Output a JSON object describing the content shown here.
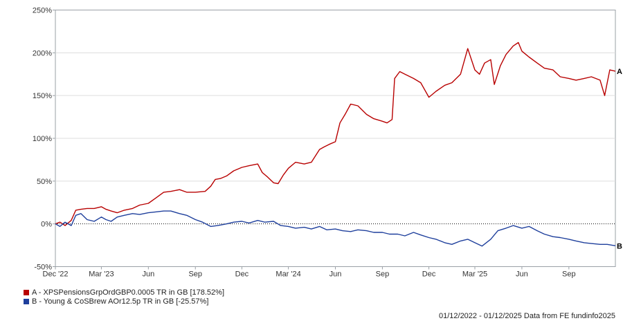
{
  "chart_data": {
    "type": "line",
    "y_axis": {
      "min": -50,
      "max": 250,
      "tick_values": [
        -50,
        0,
        50,
        100,
        150,
        200,
        250
      ],
      "tick_labels": [
        "-50%",
        "0%",
        "50%",
        "100%",
        "150%",
        "200%",
        "250%"
      ]
    },
    "x_axis": {
      "start": "2022-12-01",
      "end": "2025-12-01",
      "ticks": [
        {
          "date": "2022-12-01",
          "label": "Dec '22"
        },
        {
          "date": "2023-03-01",
          "label": "Mar '23"
        },
        {
          "date": "2023-06-01",
          "label": "Jun"
        },
        {
          "date": "2023-09-01",
          "label": "Sep"
        },
        {
          "date": "2023-12-01",
          "label": "Dec"
        },
        {
          "date": "2024-03-01",
          "label": "Mar '24"
        },
        {
          "date": "2024-06-01",
          "label": "Jun"
        },
        {
          "date": "2024-09-01",
          "label": "Sep"
        },
        {
          "date": "2024-12-01",
          "label": "Dec"
        },
        {
          "date": "2025-03-01",
          "label": "Mar '25"
        },
        {
          "date": "2025-06-01",
          "label": "Jun"
        },
        {
          "date": "2025-09-01",
          "label": "Sep"
        }
      ]
    },
    "zero_line": "dotted",
    "series": [
      {
        "id": "A",
        "end_label": "A",
        "name": "A - XPSPensionsGrpOrdGBP0.0005 TR in GB [178.52%]",
        "color": "#b80000",
        "points": [
          [
            "2022-12-01",
            0
          ],
          [
            "2022-12-10",
            2
          ],
          [
            "2022-12-20",
            -2
          ],
          [
            "2023-01-01",
            4
          ],
          [
            "2023-01-10",
            16
          ],
          [
            "2023-01-20",
            17
          ],
          [
            "2023-02-01",
            18
          ],
          [
            "2023-02-15",
            18
          ],
          [
            "2023-03-01",
            20
          ],
          [
            "2023-03-10",
            17
          ],
          [
            "2023-03-20",
            15
          ],
          [
            "2023-04-01",
            13
          ],
          [
            "2023-04-15",
            16
          ],
          [
            "2023-05-01",
            18
          ],
          [
            "2023-05-15",
            22
          ],
          [
            "2023-06-01",
            24
          ],
          [
            "2023-06-15",
            30
          ],
          [
            "2023-07-01",
            37
          ],
          [
            "2023-07-15",
            38
          ],
          [
            "2023-08-01",
            40
          ],
          [
            "2023-08-15",
            37
          ],
          [
            "2023-09-01",
            37
          ],
          [
            "2023-09-20",
            38
          ],
          [
            "2023-10-01",
            44
          ],
          [
            "2023-10-10",
            52
          ],
          [
            "2023-10-20",
            53
          ],
          [
            "2023-11-01",
            56
          ],
          [
            "2023-11-15",
            62
          ],
          [
            "2023-12-01",
            66
          ],
          [
            "2023-12-15",
            68
          ],
          [
            "2024-01-01",
            70
          ],
          [
            "2024-01-10",
            60
          ],
          [
            "2024-01-20",
            55
          ],
          [
            "2024-02-01",
            48
          ],
          [
            "2024-02-10",
            47
          ],
          [
            "2024-02-20",
            57
          ],
          [
            "2024-03-01",
            65
          ],
          [
            "2024-03-15",
            72
          ],
          [
            "2024-04-01",
            70
          ],
          [
            "2024-04-15",
            72
          ],
          [
            "2024-05-01",
            87
          ],
          [
            "2024-05-10",
            90
          ],
          [
            "2024-05-20",
            93
          ],
          [
            "2024-06-01",
            96
          ],
          [
            "2024-06-10",
            118
          ],
          [
            "2024-06-20",
            128
          ],
          [
            "2024-07-01",
            140
          ],
          [
            "2024-07-15",
            138
          ],
          [
            "2024-08-01",
            128
          ],
          [
            "2024-08-15",
            123
          ],
          [
            "2024-09-01",
            120
          ],
          [
            "2024-09-10",
            118
          ],
          [
            "2024-09-20",
            122
          ],
          [
            "2024-09-25",
            170
          ],
          [
            "2024-10-05",
            178
          ],
          [
            "2024-10-15",
            175
          ],
          [
            "2024-11-01",
            170
          ],
          [
            "2024-11-15",
            165
          ],
          [
            "2024-12-01",
            148
          ],
          [
            "2024-12-15",
            155
          ],
          [
            "2025-01-01",
            162
          ],
          [
            "2025-01-15",
            165
          ],
          [
            "2025-02-01",
            175
          ],
          [
            "2025-02-15",
            205
          ],
          [
            "2025-03-01",
            180
          ],
          [
            "2025-03-10",
            175
          ],
          [
            "2025-03-20",
            188
          ],
          [
            "2025-04-01",
            192
          ],
          [
            "2025-04-08",
            163
          ],
          [
            "2025-04-20",
            185
          ],
          [
            "2025-05-01",
            198
          ],
          [
            "2025-05-15",
            208
          ],
          [
            "2025-05-25",
            212
          ],
          [
            "2025-06-01",
            202
          ],
          [
            "2025-06-15",
            195
          ],
          [
            "2025-07-01",
            188
          ],
          [
            "2025-07-15",
            182
          ],
          [
            "2025-08-01",
            180
          ],
          [
            "2025-08-15",
            172
          ],
          [
            "2025-09-01",
            170
          ],
          [
            "2025-09-15",
            168
          ],
          [
            "2025-10-01",
            170
          ],
          [
            "2025-10-15",
            172
          ],
          [
            "2025-11-01",
            168
          ],
          [
            "2025-11-10",
            150
          ],
          [
            "2025-11-20",
            180
          ],
          [
            "2025-12-01",
            178.52
          ]
        ]
      },
      {
        "id": "B",
        "end_label": "B",
        "name": "B - Young & CoSBrew AOr12.5p TR in GB [-25.57%]",
        "color": "#1e3f9c",
        "points": [
          [
            "2022-12-01",
            0
          ],
          [
            "2022-12-10",
            -3
          ],
          [
            "2022-12-20",
            2
          ],
          [
            "2023-01-01",
            -2
          ],
          [
            "2023-01-10",
            10
          ],
          [
            "2023-01-20",
            12
          ],
          [
            "2023-02-01",
            5
          ],
          [
            "2023-02-15",
            3
          ],
          [
            "2023-03-01",
            8
          ],
          [
            "2023-03-10",
            5
          ],
          [
            "2023-03-20",
            3
          ],
          [
            "2023-04-01",
            8
          ],
          [
            "2023-04-15",
            10
          ],
          [
            "2023-05-01",
            12
          ],
          [
            "2023-05-15",
            11
          ],
          [
            "2023-06-01",
            13
          ],
          [
            "2023-06-15",
            14
          ],
          [
            "2023-07-01",
            15
          ],
          [
            "2023-07-15",
            15
          ],
          [
            "2023-08-01",
            12
          ],
          [
            "2023-08-15",
            10
          ],
          [
            "2023-09-01",
            5
          ],
          [
            "2023-09-15",
            2
          ],
          [
            "2023-10-01",
            -3
          ],
          [
            "2023-10-15",
            -2
          ],
          [
            "2023-11-01",
            0
          ],
          [
            "2023-11-15",
            2
          ],
          [
            "2023-12-01",
            3
          ],
          [
            "2023-12-15",
            1
          ],
          [
            "2024-01-01",
            4
          ],
          [
            "2024-01-15",
            2
          ],
          [
            "2024-02-01",
            3
          ],
          [
            "2024-02-15",
            -2
          ],
          [
            "2024-03-01",
            -3
          ],
          [
            "2024-03-15",
            -5
          ],
          [
            "2024-04-01",
            -4
          ],
          [
            "2024-04-15",
            -6
          ],
          [
            "2024-05-01",
            -3
          ],
          [
            "2024-05-15",
            -7
          ],
          [
            "2024-06-01",
            -6
          ],
          [
            "2024-06-15",
            -8
          ],
          [
            "2024-07-01",
            -9
          ],
          [
            "2024-07-15",
            -7
          ],
          [
            "2024-08-01",
            -8
          ],
          [
            "2024-08-15",
            -10
          ],
          [
            "2024-09-01",
            -10
          ],
          [
            "2024-09-15",
            -12
          ],
          [
            "2024-10-01",
            -12
          ],
          [
            "2024-10-15",
            -14
          ],
          [
            "2024-11-01",
            -10
          ],
          [
            "2024-11-15",
            -13
          ],
          [
            "2024-12-01",
            -16
          ],
          [
            "2024-12-15",
            -18
          ],
          [
            "2025-01-01",
            -22
          ],
          [
            "2025-01-15",
            -24
          ],
          [
            "2025-02-01",
            -20
          ],
          [
            "2025-02-15",
            -18
          ],
          [
            "2025-03-01",
            -22
          ],
          [
            "2025-03-15",
            -26
          ],
          [
            "2025-04-01",
            -18
          ],
          [
            "2025-04-15",
            -8
          ],
          [
            "2025-05-01",
            -5
          ],
          [
            "2025-05-15",
            -2
          ],
          [
            "2025-06-01",
            -5
          ],
          [
            "2025-06-15",
            -3
          ],
          [
            "2025-07-01",
            -8
          ],
          [
            "2025-07-15",
            -12
          ],
          [
            "2025-08-01",
            -15
          ],
          [
            "2025-08-15",
            -16
          ],
          [
            "2025-09-01",
            -18
          ],
          [
            "2025-09-15",
            -20
          ],
          [
            "2025-10-01",
            -22
          ],
          [
            "2025-10-15",
            -23
          ],
          [
            "2025-11-01",
            -24
          ],
          [
            "2025-11-15",
            -24
          ],
          [
            "2025-12-01",
            -25.57
          ]
        ]
      }
    ],
    "date_range": "01/12/2022 - 01/12/2025",
    "source": "Data from FE fundinfo2025"
  },
  "legend": {
    "a_label": "A - XPSPensionsGrpOrdGBP0.0005 TR in GB [178.52%]",
    "b_label": "B - Young & CoSBrew AOr12.5p TR in GB [-25.57%]"
  },
  "footer": {
    "text": "01/12/2022 - 01/12/2025 Data from FE fundinfo2025"
  }
}
